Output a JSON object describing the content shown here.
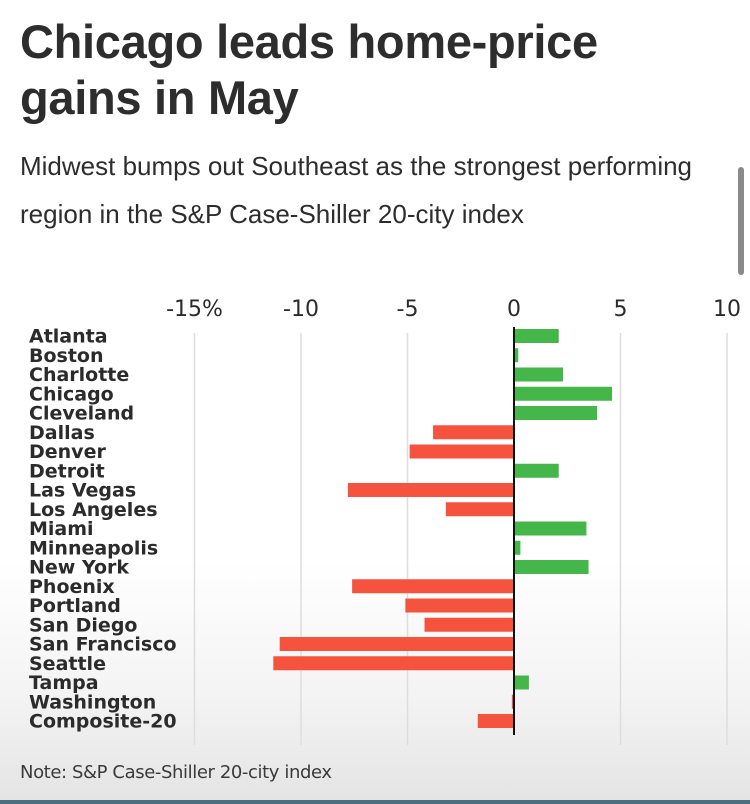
{
  "header": {
    "title": "Chicago leads home-price gains in May",
    "subtitle": "Midwest bumps out Southeast as the strongest performing region in the S&P Case-Shiller 20-city index"
  },
  "footer": {
    "note": "Note: S&P Case-Shiller 20-city index"
  },
  "colors": {
    "positive": "#45b649",
    "negative": "#f5533d",
    "gridline": "#dddddd",
    "axis": "#111111"
  },
  "chart_data": {
    "type": "bar",
    "orientation": "horizontal",
    "title": "Chicago leads home-price gains in May",
    "subtitle": "Midwest bumps out Southeast as the strongest performing region in the S&P Case-Shiller 20-city index",
    "xlabel": "",
    "ylabel": "",
    "xlim": [
      -15.5,
      10.5
    ],
    "grid": true,
    "x_ticks": [
      -15,
      -10,
      -5,
      0,
      5,
      10
    ],
    "x_tick_labels": [
      "-15%",
      "-10",
      "-5",
      "0",
      "5",
      "10"
    ],
    "categories": [
      "Atlanta",
      "Boston",
      "Charlotte",
      "Chicago",
      "Cleveland",
      "Dallas",
      "Denver",
      "Detroit",
      "Las Vegas",
      "Los Angeles",
      "Miami",
      "Minneapolis",
      "New York",
      "Phoenix",
      "Portland",
      "San Diego",
      "San Francisco",
      "Seattle",
      "Tampa",
      "Washington",
      "Composite-20"
    ],
    "values": [
      2.1,
      0.2,
      2.3,
      4.6,
      3.9,
      -3.8,
      -4.9,
      2.1,
      -7.8,
      -3.2,
      3.4,
      0.3,
      3.5,
      -7.6,
      -5.1,
      -4.2,
      -11.0,
      -11.3,
      0.7,
      -0.1,
      -1.7
    ],
    "note": "Note: S&P Case-Shiller 20-city index"
  }
}
